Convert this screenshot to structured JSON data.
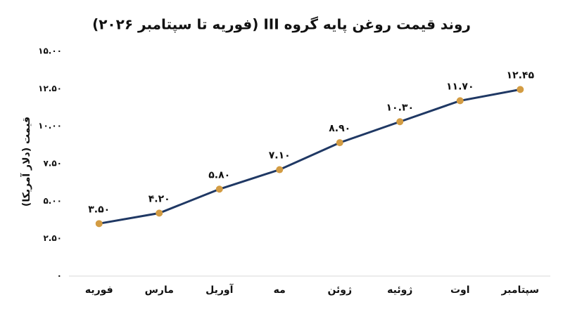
{
  "chart_data": {
    "type": "line",
    "title": "روند قیمت روغن پایه گروه III (فوریه تا سپتامبر ۲۰۲۶)",
    "y_label": "قیمت (دلار آمریکا)",
    "categories": [
      "فوریه",
      "مارس",
      "آوریل",
      "مه",
      "ژوئن",
      "ژوئیه",
      "اوت",
      "سپتامبر"
    ],
    "series": [
      {
        "name": "قیمت",
        "color": "#1f3864",
        "marker_color": "#d39c43",
        "values": [
          3.5,
          4.2,
          5.8,
          7.1,
          8.9,
          10.3,
          11.7,
          12.45
        ],
        "value_labels": [
          "۳.۵۰",
          "۴.۲۰",
          "۵.۸۰",
          "۷.۱۰",
          "۸.۹۰",
          "۱۰.۳۰",
          "۱۱.۷۰",
          "۱۲.۴۵"
        ]
      }
    ],
    "ylim": [
      0,
      15
    ],
    "yticks": [
      {
        "value": 0,
        "label": "۰"
      },
      {
        "value": 2.5,
        "label": "۲.۵۰"
      },
      {
        "value": 5,
        "label": "۵.۰۰"
      },
      {
        "value": 7.5,
        "label": "۷.۵۰"
      },
      {
        "value": 10,
        "label": "۱۰.۰۰"
      },
      {
        "value": 12.5,
        "label": "۱۲.۵۰"
      },
      {
        "value": 15,
        "label": "۱۵.۰۰"
      }
    ],
    "grid": false
  }
}
